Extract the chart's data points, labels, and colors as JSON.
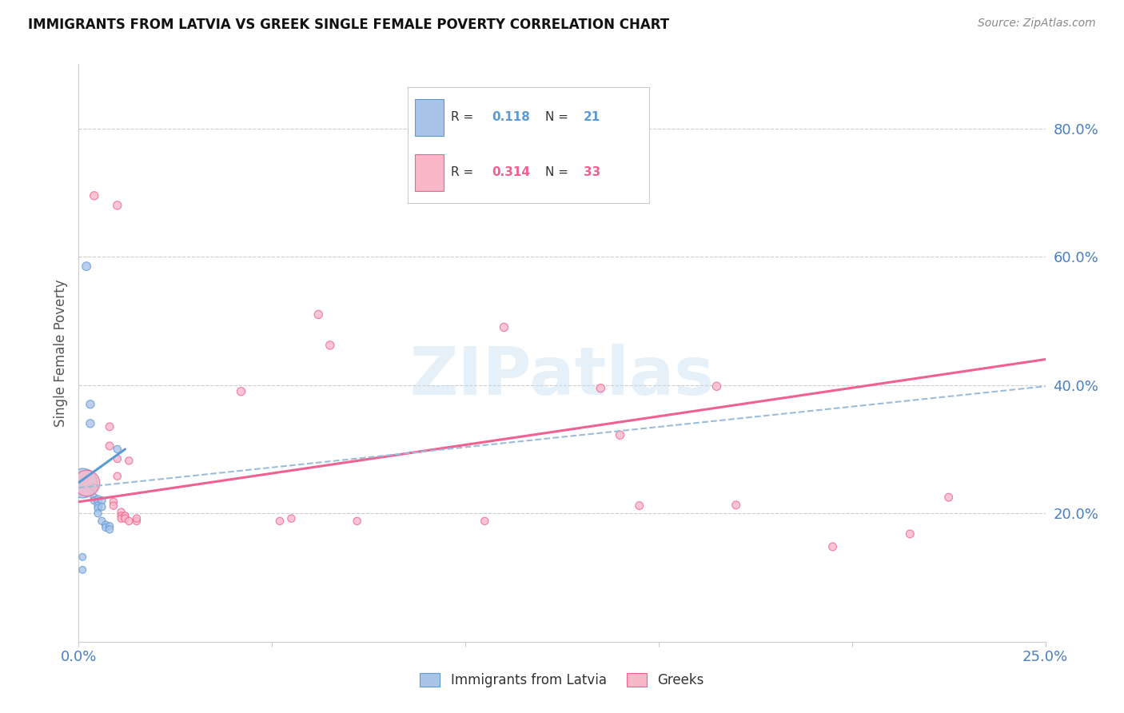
{
  "title": "IMMIGRANTS FROM LATVIA VS GREEK SINGLE FEMALE POVERTY CORRELATION CHART",
  "source": "Source: ZipAtlas.com",
  "ylabel": "Single Female Poverty",
  "ylabel_right_ticks": [
    "80.0%",
    "60.0%",
    "40.0%",
    "20.0%"
  ],
  "ylabel_right_values": [
    0.8,
    0.6,
    0.4,
    0.2
  ],
  "legend_label1": "Immigrants from Latvia",
  "legend_label2": "Greeks",
  "r1": "0.118",
  "n1": "21",
  "r2": "0.314",
  "n2": "33",
  "color_blue": "#aac4e8",
  "color_pink": "#f9b8c8",
  "color_blue_line": "#5b9bd5",
  "color_pink_line": "#f06090",
  "color_dashed": "#9bbdda",
  "background": "#ffffff",
  "grid_color": "#cccccc",
  "xlim": [
    0.0,
    0.25
  ],
  "ylim": [
    0.0,
    0.9
  ],
  "blue_points": [
    [
      0.002,
      0.585
    ],
    [
      0.003,
      0.37
    ],
    [
      0.003,
      0.34
    ],
    [
      0.004,
      0.24
    ],
    [
      0.004,
      0.225
    ],
    [
      0.004,
      0.22
    ],
    [
      0.005,
      0.222
    ],
    [
      0.005,
      0.218
    ],
    [
      0.005,
      0.212
    ],
    [
      0.005,
      0.208
    ],
    [
      0.005,
      0.2
    ],
    [
      0.006,
      0.22
    ],
    [
      0.006,
      0.21
    ],
    [
      0.006,
      0.188
    ],
    [
      0.007,
      0.182
    ],
    [
      0.007,
      0.178
    ],
    [
      0.008,
      0.18
    ],
    [
      0.008,
      0.175
    ],
    [
      0.01,
      0.3
    ],
    [
      0.001,
      0.132
    ],
    [
      0.001,
      0.112
    ]
  ],
  "blue_sizes": [
    60,
    55,
    55,
    45,
    45,
    45,
    45,
    45,
    45,
    45,
    45,
    45,
    45,
    45,
    45,
    45,
    45,
    45,
    45,
    40,
    40
  ],
  "blue_big_points": [
    [
      0.001,
      0.248
    ]
  ],
  "blue_big_sizes": [
    700
  ],
  "pink_points": [
    [
      0.004,
      0.695
    ],
    [
      0.01,
      0.68
    ],
    [
      0.008,
      0.335
    ],
    [
      0.008,
      0.305
    ],
    [
      0.009,
      0.218
    ],
    [
      0.009,
      0.212
    ],
    [
      0.01,
      0.285
    ],
    [
      0.01,
      0.258
    ],
    [
      0.011,
      0.202
    ],
    [
      0.011,
      0.196
    ],
    [
      0.011,
      0.192
    ],
    [
      0.012,
      0.196
    ],
    [
      0.012,
      0.192
    ],
    [
      0.013,
      0.188
    ],
    [
      0.013,
      0.282
    ],
    [
      0.015,
      0.188
    ],
    [
      0.015,
      0.192
    ],
    [
      0.11,
      0.49
    ],
    [
      0.135,
      0.395
    ],
    [
      0.14,
      0.322
    ],
    [
      0.145,
      0.212
    ],
    [
      0.17,
      0.213
    ],
    [
      0.165,
      0.398
    ],
    [
      0.195,
      0.148
    ],
    [
      0.215,
      0.168
    ],
    [
      0.225,
      0.225
    ],
    [
      0.062,
      0.51
    ],
    [
      0.065,
      0.462
    ],
    [
      0.072,
      0.188
    ],
    [
      0.052,
      0.188
    ],
    [
      0.042,
      0.39
    ],
    [
      0.055,
      0.192
    ],
    [
      0.105,
      0.188
    ]
  ],
  "pink_sizes": [
    55,
    55,
    50,
    50,
    45,
    45,
    45,
    45,
    45,
    45,
    45,
    45,
    45,
    45,
    45,
    45,
    45,
    55,
    55,
    55,
    50,
    50,
    55,
    50,
    50,
    50,
    55,
    55,
    45,
    45,
    55,
    45,
    45
  ],
  "pink_big_points": [
    [
      0.002,
      0.248
    ]
  ],
  "pink_big_sizes": [
    550
  ],
  "blue_trendline": [
    [
      0.0,
      0.248
    ],
    [
      0.012,
      0.3
    ]
  ],
  "pink_trendline": [
    [
      0.0,
      0.218
    ],
    [
      0.25,
      0.44
    ]
  ],
  "dashed_line": [
    [
      0.0,
      0.24
    ],
    [
      0.25,
      0.398
    ]
  ]
}
